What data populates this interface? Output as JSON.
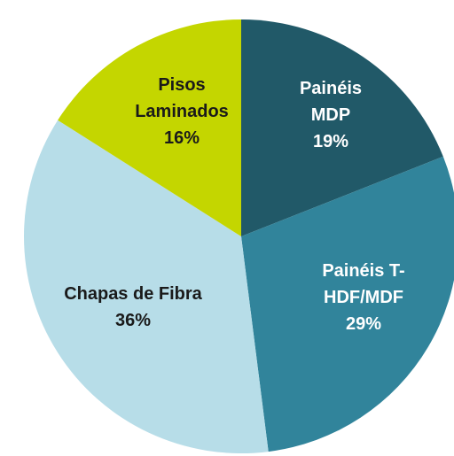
{
  "chart_data": {
    "type": "pie",
    "categories": [
      "Painéis MDP",
      "Painéis T-HDF/MDF",
      "Chapas de Fibra",
      "Pisos Laminados"
    ],
    "values": [
      19,
      29,
      36,
      16
    ],
    "value_labels": [
      "19%",
      "29%",
      "36%",
      "16%"
    ],
    "colors": [
      "#215968",
      "#31849b",
      "#b7dde8",
      "#c4d600"
    ],
    "label_colors": [
      "#ffffff",
      "#ffffff",
      "#1a1a1a",
      "#1a1a1a"
    ]
  }
}
